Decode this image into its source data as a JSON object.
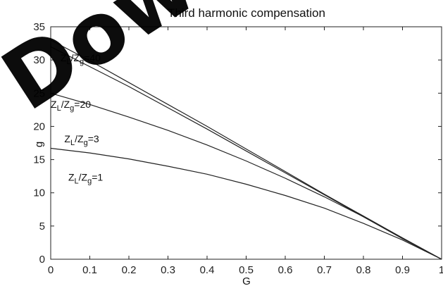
{
  "chart_data": {
    "type": "line",
    "title": "Third harmonic compensation",
    "xlabel": "G",
    "ylabel": "",
    "xlim": [
      0,
      1
    ],
    "ylim": [
      0,
      35
    ],
    "xticks": [
      0,
      0.1,
      0.2,
      0.3,
      0.4,
      0.5,
      0.6,
      0.7,
      0.8,
      0.9,
      1
    ],
    "xtick_labels": [
      "0",
      "0.1",
      "0.2",
      "0.3",
      "0.4",
      "0.5",
      "0.6",
      "0.7",
      "0.8",
      "0.9",
      "1"
    ],
    "yticks": [
      0,
      5,
      10,
      15,
      20,
      25,
      30,
      35
    ],
    "ytick_labels": [
      "0",
      "5",
      "10",
      "15",
      "20",
      "25",
      "30",
      "35"
    ],
    "grid": false,
    "legend": "none",
    "series": [
      {
        "label": "ZL/Zg=40",
        "x": [
          0,
          0.1,
          0.2,
          0.3,
          0.4,
          0.5,
          0.6,
          0.7,
          0.8,
          0.9,
          1
        ],
        "y": [
          33.0,
          29.9,
          26.6,
          23.3,
          20.0,
          16.6,
          13.2,
          9.8,
          6.5,
          3.2,
          0
        ]
      },
      {
        "label": "ZL/Zg=20",
        "x": [
          0,
          0.1,
          0.2,
          0.3,
          0.4,
          0.5,
          0.6,
          0.7,
          0.8,
          0.9,
          1
        ],
        "y": [
          32.0,
          29.0,
          26.0,
          22.8,
          19.6,
          16.3,
          13.0,
          9.7,
          6.4,
          3.1,
          0
        ]
      },
      {
        "label": "ZL/Zg=3",
        "x": [
          0,
          0.1,
          0.2,
          0.3,
          0.4,
          0.5,
          0.6,
          0.7,
          0.8,
          0.9,
          1
        ],
        "y": [
          25.0,
          23.3,
          21.4,
          19.4,
          17.2,
          14.8,
          12.2,
          9.4,
          6.4,
          3.2,
          0
        ]
      },
      {
        "label": "ZL/Zg=1",
        "x": [
          0,
          0.1,
          0.2,
          0.3,
          0.4,
          0.5,
          0.6,
          0.7,
          0.8,
          0.9,
          1
        ],
        "y": [
          16.7,
          16.0,
          15.1,
          14.0,
          12.8,
          11.3,
          9.6,
          7.7,
          5.4,
          2.9,
          0
        ]
      }
    ],
    "annotations": [
      {
        "base": "Z",
        "sub1": "L",
        "mid": "/Z",
        "sub2": "g",
        "tail": "=40",
        "x": 0.025,
        "y": 29.8
      },
      {
        "base": "Z",
        "sub1": "L",
        "mid": "/Z",
        "sub2": "g",
        "tail": "=20",
        "x": 0.0,
        "y": 22.8
      },
      {
        "base": "Z",
        "sub1": "L",
        "mid": "/Z",
        "sub2": "g",
        "tail": "=3",
        "x": 0.035,
        "y": 17.6
      },
      {
        "base": "Z",
        "sub1": "L",
        "mid": "/Z",
        "sub2": "g",
        "tail": "=1",
        "x": 0.045,
        "y": 11.8
      }
    ],
    "ylabel_fragment": "g"
  },
  "watermark": "Download"
}
